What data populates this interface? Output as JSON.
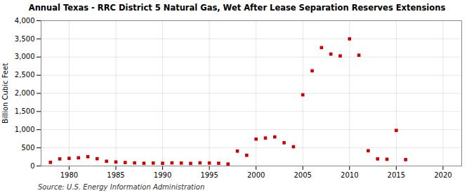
{
  "chart_data": {
    "type": "scatter",
    "title": "Annual Texas - RRC District 5 Natural Gas, Wet After Lease Separation Reserves Extensions",
    "ylabel": "Billion Cubic Feet",
    "source": "Source: U.S. Energy Information Administration",
    "x": [
      1978,
      1979,
      1980,
      1981,
      1982,
      1983,
      1984,
      1985,
      1986,
      1987,
      1988,
      1989,
      1990,
      1991,
      1992,
      1993,
      1994,
      1995,
      1996,
      1997,
      1998,
      1999,
      2000,
      2001,
      2002,
      2003,
      2004,
      2005,
      2006,
      2007,
      2008,
      2009,
      2010,
      2011,
      2012,
      2013,
      2014,
      2015,
      2016
    ],
    "values": [
      100,
      195,
      210,
      225,
      255,
      200,
      130,
      110,
      95,
      85,
      75,
      80,
      75,
      85,
      80,
      70,
      85,
      80,
      75,
      55,
      410,
      295,
      740,
      770,
      800,
      640,
      530,
      1960,
      2620,
      3260,
      3080,
      3030,
      3500,
      3050,
      420,
      195,
      185,
      980,
      175
    ],
    "color": "#cc0000",
    "marker": "square",
    "grid": true,
    "xlim": [
      1977,
      2022
    ],
    "ylim": [
      0,
      4000
    ],
    "xticks": [
      1980,
      1985,
      1990,
      1995,
      2000,
      2005,
      2010,
      2015,
      2020
    ],
    "yticks": [
      0,
      500,
      {
        "value": 1000,
        "label": "1,000"
      },
      {
        "value": 1500,
        "label": "1,500"
      },
      {
        "value": 2000,
        "label": "2,000"
      },
      {
        "value": 2500,
        "label": "2,500"
      },
      {
        "value": 3000,
        "label": "3,000"
      },
      {
        "value": 3500,
        "label": "3,500"
      },
      {
        "value": 4000,
        "label": "4,000"
      }
    ]
  }
}
